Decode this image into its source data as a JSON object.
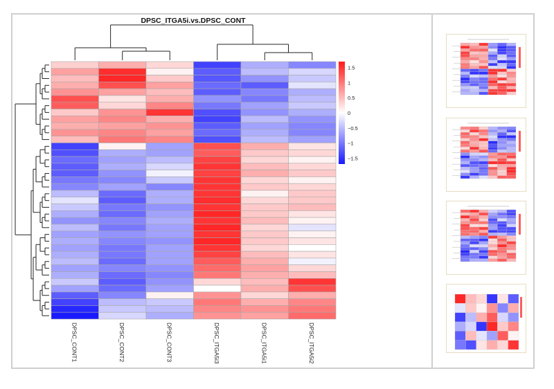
{
  "chart_data": {
    "type": "heatmap",
    "title": "DPSC_ITGA5i.vs.DPSC_CONT",
    "columns": [
      "DPSC_CONT1",
      "DPSC_CONT2",
      "DPSC_CONT3",
      "DPSC_ITGA5i3",
      "DPSC_ITGA5i1",
      "DPSC_ITGA5i2"
    ],
    "colorbar": {
      "range": [
        -1.7,
        1.7
      ],
      "ticks": [
        -1.5,
        -1,
        -0.5,
        0,
        0.5,
        1,
        1.5
      ],
      "tick_labels": [
        "−1.5",
        "−1",
        "−0.5",
        "0",
        "0.5",
        "1",
        "1.5"
      ],
      "low_color": "#1a1aff",
      "mid_color": "#ffffff",
      "high_color": "#ff1a1a"
    },
    "values": [
      [
        0.35,
        0.6,
        0.3,
        -1.4,
        -0.6,
        -0.9
      ],
      [
        0.7,
        1.55,
        0.1,
        -1.2,
        -0.5,
        -0.3
      ],
      [
        0.5,
        1.6,
        0.4,
        -1.25,
        -0.8,
        -0.4
      ],
      [
        0.6,
        1.3,
        0.7,
        -1.1,
        -1.2,
        -0.2
      ],
      [
        0.8,
        0.7,
        0.5,
        -1.2,
        -0.9,
        -0.6
      ],
      [
        1.3,
        0.2,
        0.6,
        -0.8,
        -1.0,
        -0.5
      ],
      [
        1.2,
        0.3,
        0.9,
        -1.0,
        -0.7,
        -0.4
      ],
      [
        0.4,
        0.8,
        1.5,
        -1.3,
        -0.8,
        -0.6
      ],
      [
        0.7,
        0.9,
        0.6,
        -1.4,
        -0.5,
        -0.8
      ],
      [
        0.6,
        0.7,
        0.8,
        -1.2,
        -0.7,
        -0.9
      ],
      [
        0.8,
        0.9,
        0.7,
        -1.1,
        -0.6,
        -0.9
      ],
      [
        0.5,
        1.0,
        0.9,
        -1.3,
        -0.5,
        -0.7
      ],
      [
        -1.4,
        0.1,
        -0.7,
        1.3,
        0.6,
        0.2
      ],
      [
        -1.3,
        -0.6,
        -0.7,
        1.2,
        0.4,
        0.3
      ],
      [
        -1.1,
        -0.7,
        -0.5,
        1.4,
        0.3,
        0.1
      ],
      [
        -1.2,
        -0.6,
        -0.3,
        1.5,
        0.5,
        0.3
      ],
      [
        -1.2,
        -0.8,
        -0.1,
        1.4,
        0.6,
        0.4
      ],
      [
        -1.0,
        -0.9,
        -0.4,
        1.5,
        0.3,
        0.1
      ],
      [
        -0.9,
        -0.7,
        -0.9,
        1.5,
        0.4,
        0.3
      ],
      [
        -0.5,
        -1.1,
        -0.6,
        1.5,
        0.1,
        0.4
      ],
      [
        -0.2,
        -1.2,
        -0.6,
        1.55,
        0.3,
        0.4
      ],
      [
        -0.4,
        -1.0,
        -0.8,
        1.5,
        0.4,
        0.5
      ],
      [
        -0.6,
        -1.1,
        -0.7,
        1.6,
        0.4,
        0.2
      ],
      [
        -0.8,
        -0.9,
        -0.6,
        1.5,
        0.5,
        0.1
      ],
      [
        -0.5,
        -1.0,
        -0.7,
        1.6,
        0.3,
        -0.2
      ],
      [
        -0.7,
        -0.8,
        -0.7,
        1.5,
        0.4,
        0.1
      ],
      [
        -0.6,
        -0.9,
        -0.8,
        1.6,
        0.4,
        0.2
      ],
      [
        -0.7,
        -1.0,
        -0.7,
        1.5,
        0.3,
        0.0
      ],
      [
        -0.6,
        -1.0,
        -0.7,
        1.4,
        0.5,
        0.2
      ],
      [
        -0.5,
        -1.1,
        -0.7,
        1.2,
        0.6,
        -0.1
      ],
      [
        -0.7,
        -0.9,
        -0.8,
        1.1,
        0.7,
        0.3
      ],
      [
        -0.6,
        -1.1,
        -0.9,
        1.0,
        0.6,
        0.5
      ],
      [
        -0.4,
        -1.2,
        -0.8,
        0.3,
        0.5,
        1.5
      ],
      [
        -0.7,
        -1.1,
        -0.7,
        0.0,
        0.6,
        1.3
      ],
      [
        -1.2,
        -0.9,
        0.1,
        0.8,
        0.3,
        0.6
      ],
      [
        -1.4,
        -0.5,
        -0.4,
        1.0,
        0.6,
        0.9
      ],
      [
        -1.6,
        -0.4,
        -0.5,
        0.9,
        0.8,
        1.0
      ],
      [
        -1.7,
        -0.3,
        -0.6,
        0.8,
        0.7,
        1.1
      ]
    ],
    "thumbnails": [
      {
        "kind": "gene-heatmap",
        "rows": 18,
        "cols": 6,
        "seed": 3
      },
      {
        "kind": "gene-heatmap",
        "rows": 18,
        "cols": 6,
        "seed": 7
      },
      {
        "kind": "gene-heatmap",
        "rows": 18,
        "cols": 6,
        "seed": 11
      },
      {
        "kind": "sample-correlation",
        "values": [
          [
            1.6,
            0.5,
            0.3,
            -1.5,
            0.2,
            -1.2
          ],
          [
            -0.2,
            0.4,
            0.1,
            0.8,
            -0.9,
            0.6
          ],
          [
            -1.4,
            -0.5,
            0.6,
            1.2,
            -0.3,
            -0.8
          ],
          [
            -0.6,
            -0.3,
            -1.5,
            1.6,
            0.4,
            0.9
          ],
          [
            -1.2,
            0.5,
            -0.2,
            -0.7,
            1.2,
            0.1
          ],
          [
            -1.0,
            -1.3,
            0.2,
            0.6,
            0.3,
            1.5
          ]
        ]
      }
    ]
  }
}
